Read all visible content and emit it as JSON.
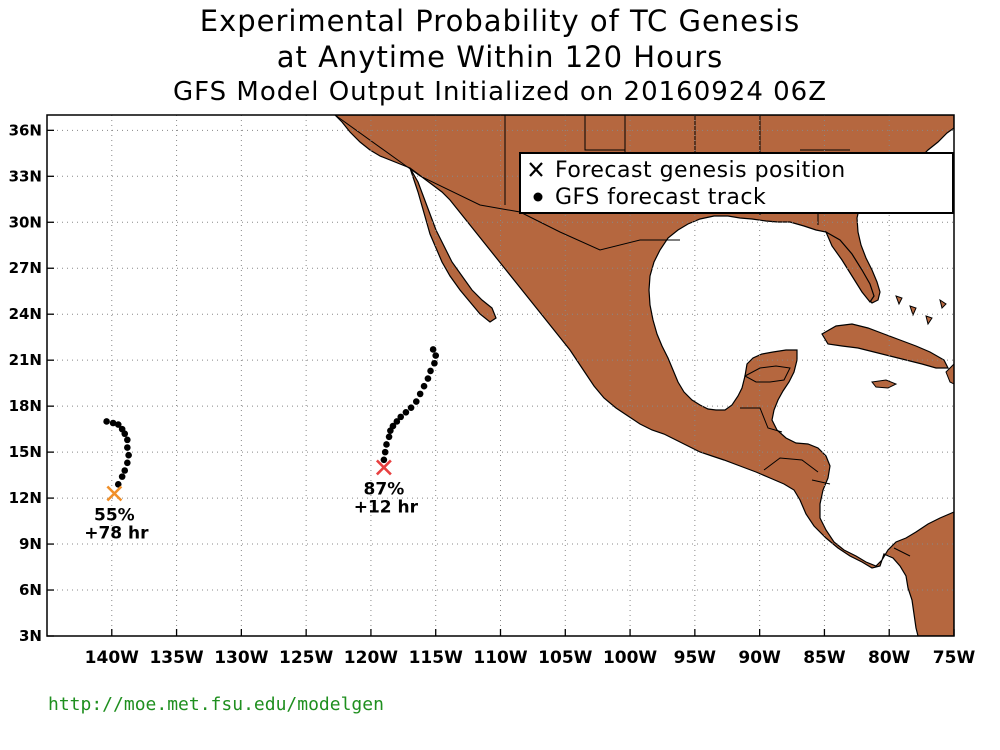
{
  "title": {
    "line1": "Experimental Probability of TC Genesis",
    "line2": "at Anytime Within 120 Hours",
    "line3": "GFS Model Output Initialized on 20160924 06Z"
  },
  "map": {
    "lon_range": [
      -145,
      -75
    ],
    "lat_range": [
      3,
      37
    ],
    "y_ticks": [
      {
        "lat": 36,
        "label": "36N"
      },
      {
        "lat": 33,
        "label": "33N"
      },
      {
        "lat": 30,
        "label": "30N"
      },
      {
        "lat": 27,
        "label": "27N"
      },
      {
        "lat": 24,
        "label": "24N"
      },
      {
        "lat": 21,
        "label": "21N"
      },
      {
        "lat": 18,
        "label": "18N"
      },
      {
        "lat": 15,
        "label": "15N"
      },
      {
        "lat": 12,
        "label": "12N"
      },
      {
        "lat": 9,
        "label": "9N"
      },
      {
        "lat": 6,
        "label": "6N"
      },
      {
        "lat": 3,
        "label": "3N"
      }
    ],
    "x_ticks": [
      {
        "lon": -140,
        "label": "140W"
      },
      {
        "lon": -135,
        "label": "135W"
      },
      {
        "lon": -130,
        "label": "130W"
      },
      {
        "lon": -125,
        "label": "125W"
      },
      {
        "lon": -120,
        "label": "120W"
      },
      {
        "lon": -115,
        "label": "115W"
      },
      {
        "lon": -110,
        "label": "110W"
      },
      {
        "lon": -105,
        "label": "105W"
      },
      {
        "lon": -100,
        "label": "100W"
      },
      {
        "lon": -95,
        "label": "95W"
      },
      {
        "lon": -90,
        "label": "90W"
      },
      {
        "lon": -85,
        "label": "85W"
      },
      {
        "lon": -80,
        "label": "80W"
      },
      {
        "lon": -75,
        "label": "75W"
      }
    ],
    "grid": "dotted",
    "land_color": "#b5673f",
    "ocean_color": "#ffffff"
  },
  "legend": {
    "genesis_label": "Forecast genesis position",
    "track_label": "GFS forecast track",
    "placement": "top-right"
  },
  "systems": [
    {
      "genesis": {
        "lon": -119.0,
        "lat": 14.0
      },
      "marker_color": "#e84040",
      "probability": "87%",
      "lead_time": "+12 hr",
      "track": [
        {
          "lon": -119.0,
          "lat": 14.5
        },
        {
          "lon": -118.9,
          "lat": 15.0
        },
        {
          "lon": -118.8,
          "lat": 15.5
        },
        {
          "lon": -118.6,
          "lat": 16.0
        },
        {
          "lon": -118.5,
          "lat": 16.4
        },
        {
          "lon": -118.3,
          "lat": 16.7
        },
        {
          "lon": -118.0,
          "lat": 17.0
        },
        {
          "lon": -117.7,
          "lat": 17.3
        },
        {
          "lon": -117.3,
          "lat": 17.6
        },
        {
          "lon": -116.9,
          "lat": 17.9
        },
        {
          "lon": -116.5,
          "lat": 18.3
        },
        {
          "lon": -116.2,
          "lat": 18.8
        },
        {
          "lon": -115.9,
          "lat": 19.3
        },
        {
          "lon": -115.6,
          "lat": 19.8
        },
        {
          "lon": -115.4,
          "lat": 20.3
        },
        {
          "lon": -115.1,
          "lat": 20.8
        },
        {
          "lon": -115.0,
          "lat": 21.3
        },
        {
          "lon": -115.2,
          "lat": 21.7
        }
      ]
    },
    {
      "genesis": {
        "lon": -139.8,
        "lat": 12.3
      },
      "marker_color": "#f0902a",
      "probability": "55%",
      "lead_time": "+78 hr",
      "track": [
        {
          "lon": -139.5,
          "lat": 12.9
        },
        {
          "lon": -139.2,
          "lat": 13.4
        },
        {
          "lon": -139.0,
          "lat": 13.8
        },
        {
          "lon": -138.8,
          "lat": 14.3
        },
        {
          "lon": -138.7,
          "lat": 14.8
        },
        {
          "lon": -138.8,
          "lat": 15.3
        },
        {
          "lon": -138.8,
          "lat": 15.8
        },
        {
          "lon": -139.0,
          "lat": 16.2
        },
        {
          "lon": -139.2,
          "lat": 16.5
        },
        {
          "lon": -139.5,
          "lat": 16.8
        },
        {
          "lon": -139.9,
          "lat": 16.9
        },
        {
          "lon": -140.4,
          "lat": 17.0
        }
      ]
    }
  ],
  "footer_url": "http://moe.met.fsu.edu/modelgen"
}
